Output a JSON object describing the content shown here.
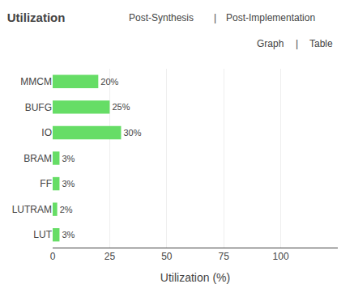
{
  "chart_data": {
    "type": "bar",
    "orientation": "horizontal",
    "title": "Utilization",
    "annotations": [
      "Post-Synthesis",
      "|",
      "Post-Implementation",
      "Graph",
      "|",
      "Table"
    ],
    "categories": [
      "MMCM",
      "BUFG",
      "IO",
      "BRAM",
      "FF",
      "LUTRAM",
      "LUT"
    ],
    "values": [
      20,
      25,
      30,
      3,
      3,
      2,
      3
    ],
    "value_labels": [
      "20%",
      "25%",
      "30%",
      "3%",
      "3%",
      "2%",
      "3%"
    ],
    "data_labels": true,
    "color": "#66dd66",
    "xlabel": "Utilization (%)",
    "xlim": [
      0,
      125
    ],
    "xticks": [
      0,
      25,
      50,
      75,
      100
    ],
    "grid": true
  }
}
